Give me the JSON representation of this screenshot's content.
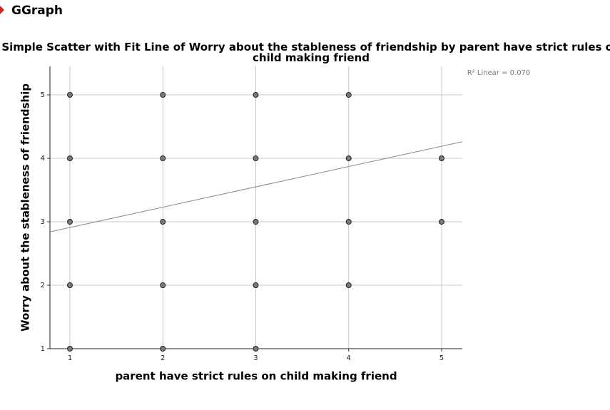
{
  "header": {
    "title": "GGraph"
  },
  "chart_data": {
    "type": "scatter",
    "title": "Simple Scatter with Fit Line of Worry about the stableness of friendship by parent have strict rules on child making friend",
    "x_label": "parent have strict rules on child making friend",
    "y_label": "Worry about the stableness of friendship",
    "annotation": "R² Linear = 0.070",
    "x": [
      1,
      1,
      1,
      1,
      1,
      2,
      2,
      2,
      2,
      2,
      3,
      3,
      3,
      3,
      3,
      4,
      4,
      4,
      4,
      5,
      5
    ],
    "values": [
      5,
      4,
      3,
      2,
      1,
      5,
      4,
      3,
      2,
      1,
      5,
      4,
      3,
      2,
      1,
      5,
      4,
      3,
      2,
      4,
      3
    ],
    "color": "#7a7a7a",
    "fit": {
      "intercept": 2.59,
      "slope": 0.32,
      "color": "#888888"
    },
    "xlim": [
      0.785,
      5.223
    ],
    "ylim": [
      1,
      5.45
    ],
    "xticks": [
      1,
      2,
      3,
      4,
      5
    ],
    "yticks": [
      1,
      2,
      3,
      4,
      5
    ],
    "grid": true
  }
}
